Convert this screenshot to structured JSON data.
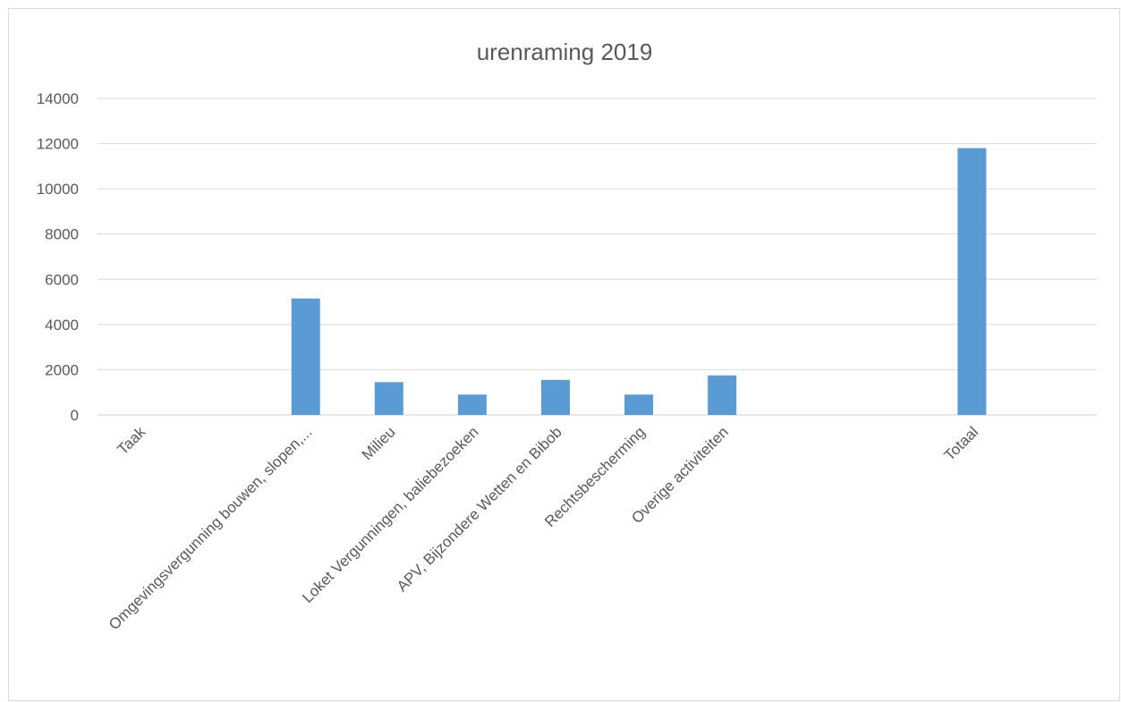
{
  "chart_data": {
    "type": "bar",
    "title": "urenraming 2019",
    "xlabel": "",
    "ylabel": "",
    "ylim": [
      0,
      14000
    ],
    "yticks": [
      0,
      2000,
      4000,
      6000,
      8000,
      10000,
      12000,
      14000
    ],
    "grid": true,
    "legend": "none",
    "bar_color": "#5b9bd5",
    "categories": [
      "Taak",
      "",
      "Omgevingsvergunning bouwen, slopen,...",
      "Milieu",
      "Loket Vergunningen, baliebezoeken",
      "APV, Bijzondere Wetten en Bibob",
      "Rechtsbescherming",
      "Overige activiteiten",
      "",
      "",
      "Totaal",
      ""
    ],
    "values": [
      0,
      0,
      5150,
      1450,
      900,
      1550,
      900,
      1750,
      0,
      0,
      11800,
      0
    ]
  }
}
